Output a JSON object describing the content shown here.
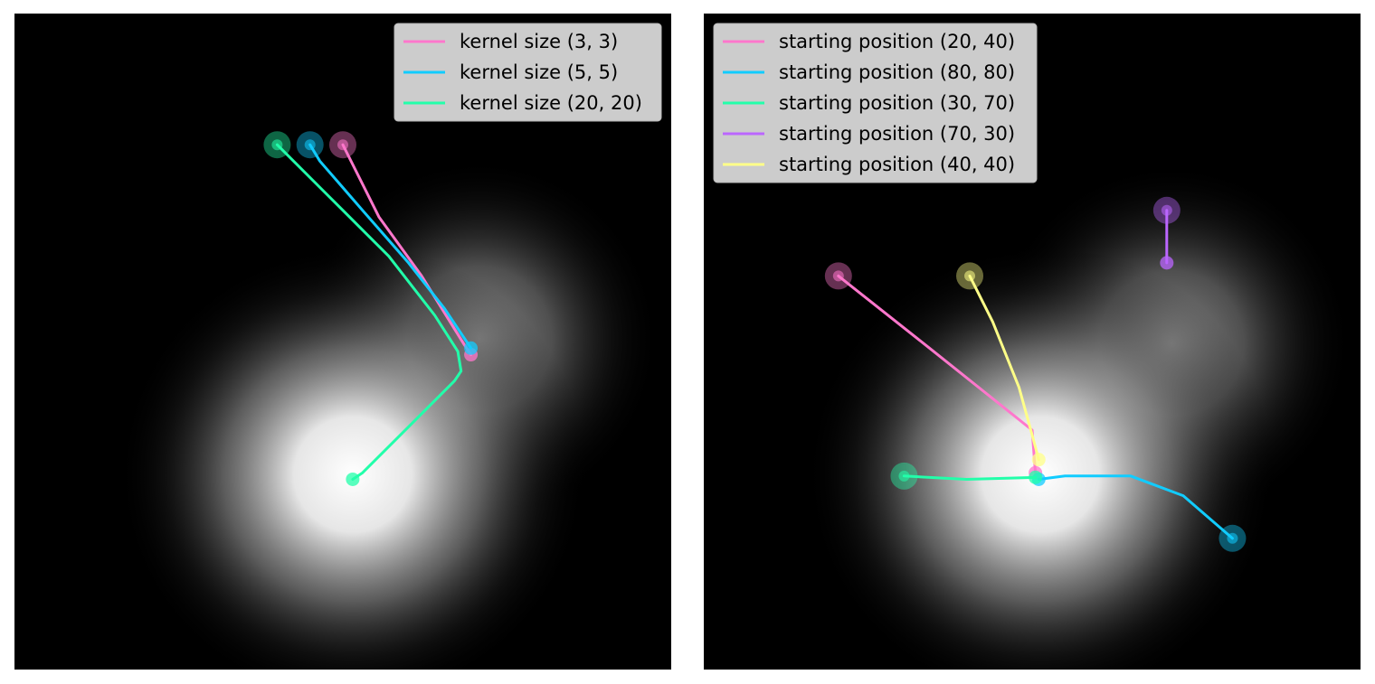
{
  "chart_data": [
    {
      "type": "line",
      "title": "",
      "xlabel": "",
      "ylabel": "",
      "xlim": [
        0,
        100
      ],
      "ylim": [
        0,
        100
      ],
      "grid": false,
      "axes_visible": false,
      "background": "gaussian-heatmap",
      "colormap": "gray",
      "legend_position": "top-right",
      "series": [
        {
          "name": "kernel size (3, 3)",
          "color": "#ff77cc",
          "points": [
            [
              50,
              80
            ],
            [
              55.5,
              69
            ],
            [
              62,
              60
            ],
            [
              68.5,
              49.5
            ],
            [
              69.5,
              48
            ]
          ]
        },
        {
          "name": "kernel size (5, 5)",
          "color": "#11ccff",
          "points": [
            [
              45,
              80
            ],
            [
              46.5,
              77.5
            ],
            [
              53,
              70
            ],
            [
              60,
              62
            ],
            [
              65.5,
              55
            ],
            [
              69.5,
              49
            ]
          ]
        },
        {
          "name": "kernel size (20, 20)",
          "color": "#22ffaa",
          "points": [
            [
              40,
              80
            ],
            [
              47,
              73
            ],
            [
              57,
              63
            ],
            [
              64,
              54
            ],
            [
              67.5,
              48.5
            ],
            [
              68,
              45.5
            ],
            [
              67,
              44
            ],
            [
              60,
              37
            ],
            [
              53,
              30
            ],
            [
              51.5,
              29
            ]
          ]
        }
      ]
    },
    {
      "type": "line",
      "title": "",
      "xlabel": "",
      "ylabel": "",
      "xlim": [
        0,
        100
      ],
      "ylim": [
        0,
        100
      ],
      "grid": false,
      "axes_visible": false,
      "background": "gaussian-heatmap",
      "colormap": "gray",
      "legend_position": "top-left",
      "series": [
        {
          "name": "starting position (20, 40)",
          "color": "#ff77cc",
          "points": [
            [
              20.5,
              60
            ],
            [
              35,
              48.5
            ],
            [
              50,
              36.5
            ],
            [
              50.5,
              30
            ]
          ]
        },
        {
          "name": "starting position (80, 80)",
          "color": "#11ccff",
          "points": [
            [
              80.5,
              20
            ],
            [
              73,
              26.5
            ],
            [
              65,
              29.5
            ],
            [
              55,
              29.5
            ],
            [
              51,
              29
            ]
          ]
        },
        {
          "name": "starting position (30, 70)",
          "color": "#22ffaa",
          "points": [
            [
              30.5,
              29.5
            ],
            [
              40,
              29
            ],
            [
              50.5,
              29.3
            ]
          ]
        },
        {
          "name": "starting position (70, 30)",
          "color": "#bb66ff",
          "points": [
            [
              70.5,
              70
            ],
            [
              70.5,
              62
            ]
          ]
        },
        {
          "name": "starting position (40, 40)",
          "color": "#ffff88",
          "points": [
            [
              40.5,
              60
            ],
            [
              44,
              53
            ],
            [
              48,
              43
            ],
            [
              50.2,
              35
            ],
            [
              51,
              32
            ]
          ]
        }
      ]
    }
  ]
}
